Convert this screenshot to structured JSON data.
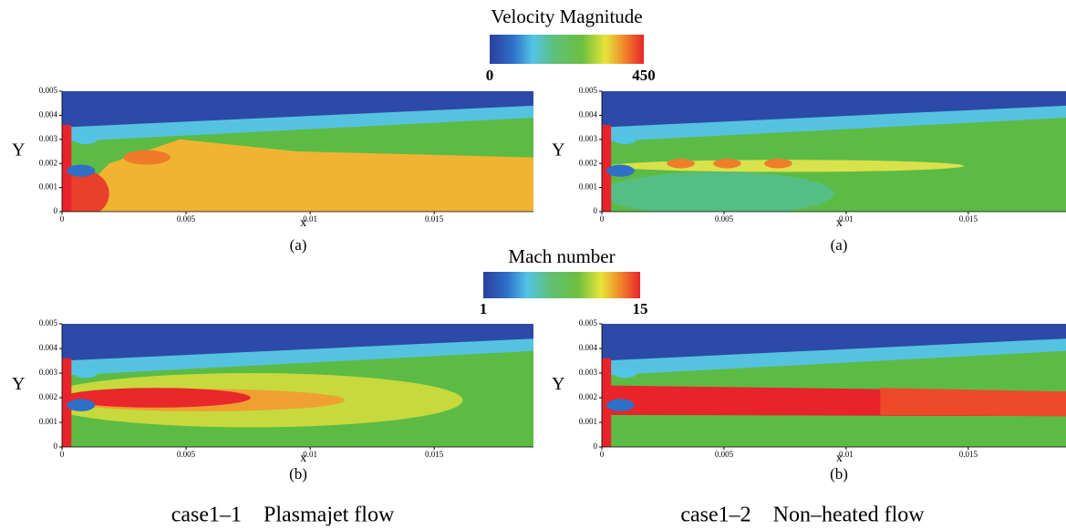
{
  "colorbars": [
    {
      "title": "Velocity Magnitude",
      "min": 0,
      "max": 450
    },
    {
      "title": "Mach number",
      "min": 1,
      "max": 15
    }
  ],
  "panels": [
    {
      "label": "(a)",
      "ylabel": "Y",
      "xlabel": "x",
      "xlim": [
        0,
        0.019
      ],
      "ylim": [
        0,
        0.005
      ],
      "xticks": [
        0,
        0.005,
        0.01,
        0.015
      ],
      "yticks": [
        0,
        0.001,
        0.002,
        0.003,
        0.004,
        0.005
      ]
    },
    {
      "label": "(a)",
      "ylabel": "Y",
      "xlabel": "x",
      "xlim": [
        0,
        0.019
      ],
      "ylim": [
        0,
        0.005
      ],
      "xticks": [
        0,
        0.005,
        0.01,
        0.015
      ],
      "yticks": [
        0,
        0.001,
        0.002,
        0.003,
        0.004,
        0.005
      ]
    },
    {
      "label": "(b)",
      "ylabel": "Y",
      "xlabel": "x",
      "xlim": [
        0,
        0.019
      ],
      "ylim": [
        0,
        0.005
      ],
      "xticks": [
        0,
        0.005,
        0.01,
        0.015
      ],
      "yticks": [
        0,
        0.001,
        0.002,
        0.003,
        0.004,
        0.005
      ]
    },
    {
      "label": "(b)",
      "ylabel": "Y",
      "xlabel": "x",
      "xlim": [
        0,
        0.019
      ],
      "ylim": [
        0,
        0.005
      ],
      "xticks": [
        0,
        0.005,
        0.01,
        0.015
      ],
      "yticks": [
        0,
        0.001,
        0.002,
        0.003,
        0.004,
        0.005
      ]
    }
  ],
  "captions": [
    "case1–1    Plasmajet flow",
    "case1–2    Non–heated flow"
  ]
}
